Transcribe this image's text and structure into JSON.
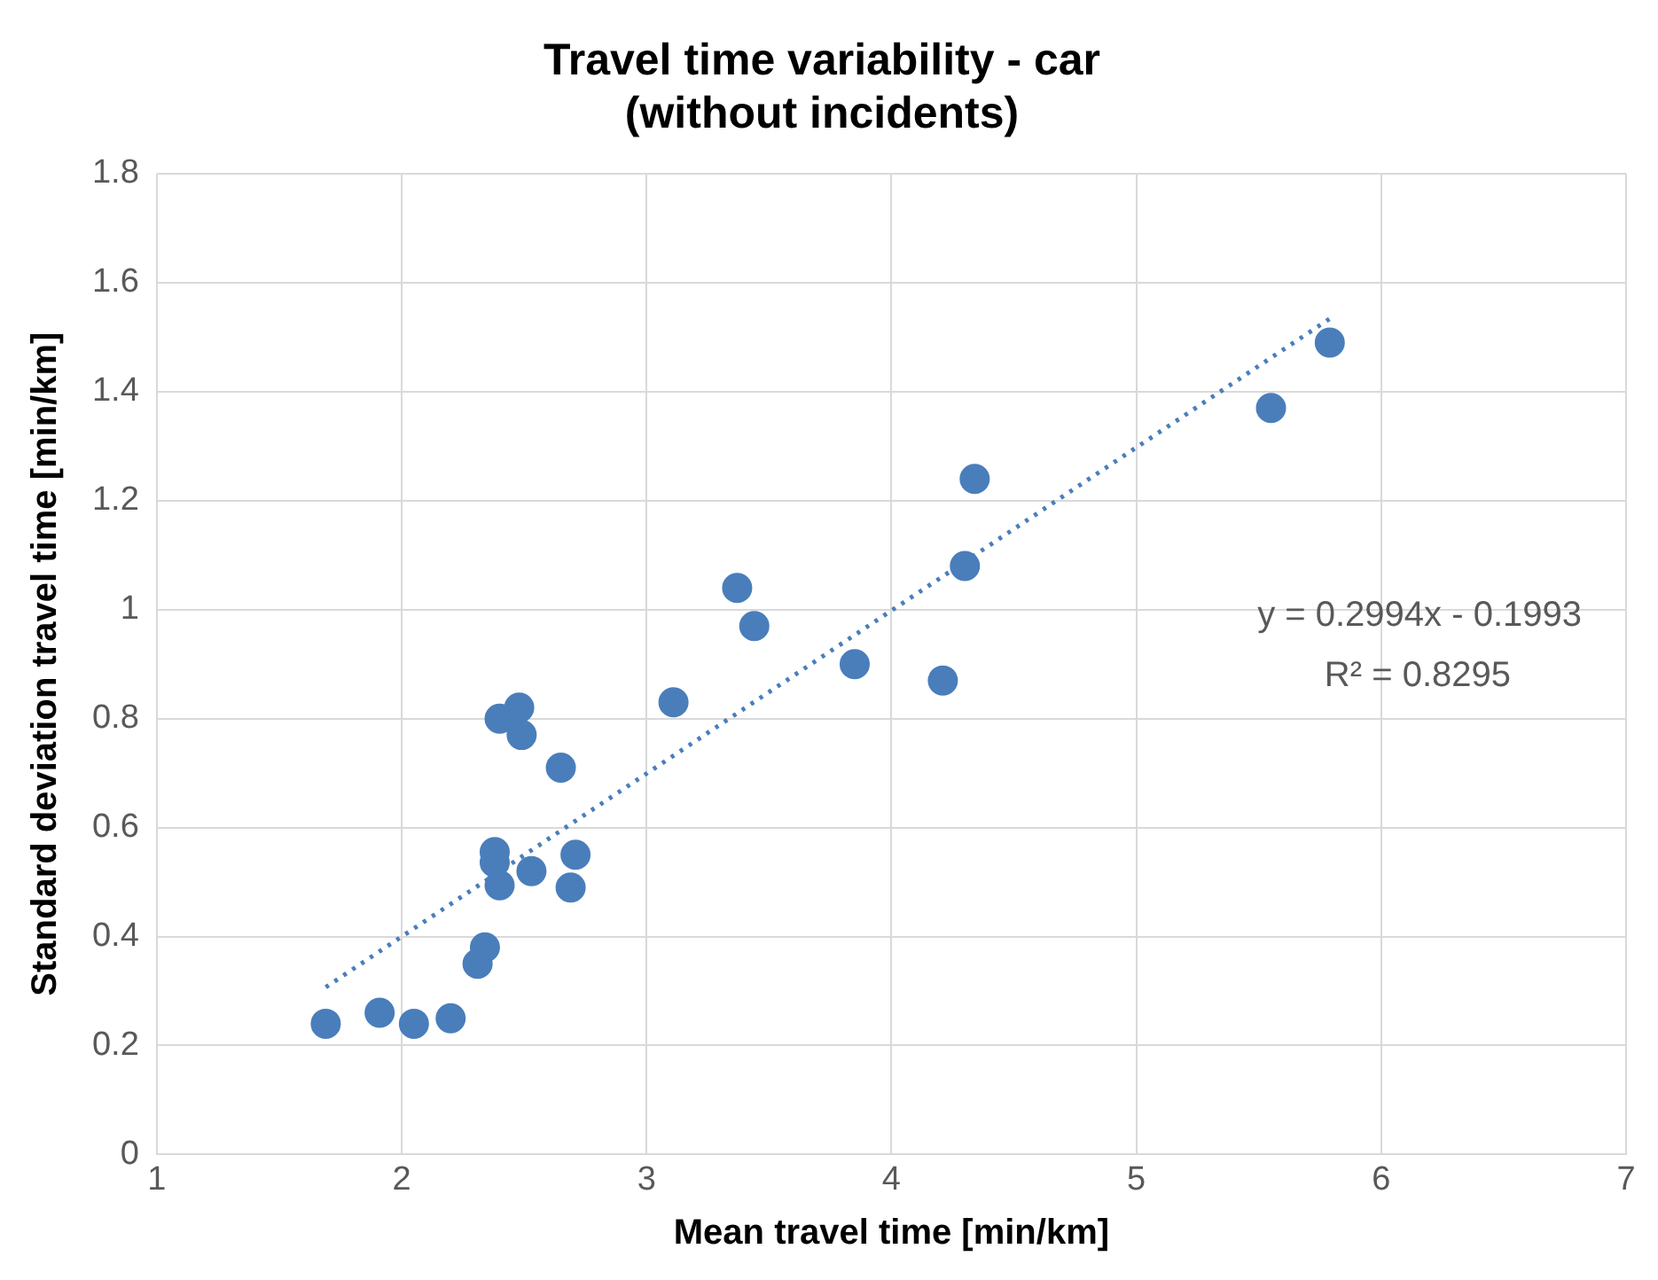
{
  "chart_data": {
    "type": "scatter",
    "title": "Travel time variability - car\n(without incidents)",
    "xlabel": "Mean travel time [min/km]",
    "ylabel": "Standard deviation travel time [min/km]",
    "series": [
      {
        "color": "#4a7ebb",
        "marker": "circle",
        "x": [
          1.69,
          1.91,
          2.05,
          2.2,
          2.31,
          2.34,
          2.38,
          2.38,
          2.4,
          2.4,
          2.48,
          2.49,
          2.65,
          2.53,
          2.71,
          2.69,
          3.11,
          3.37,
          3.44,
          3.85,
          4.21,
          4.3,
          4.34,
          5.55,
          5.79
        ],
        "values": [
          0.24,
          0.26,
          0.24,
          0.25,
          0.35,
          0.38,
          0.555,
          0.536,
          0.494,
          0.8,
          0.82,
          0.77,
          0.71,
          0.52,
          0.55,
          0.49,
          0.83,
          1.04,
          0.97,
          0.9,
          0.87,
          1.08,
          1.24,
          1.37,
          1.49
        ]
      },
      {
        "type": "line",
        "color": "#4a7ebb",
        "line_style": "dotted",
        "marker": "none",
        "x": [
          1.69,
          5.79
        ],
        "values": [
          0.307,
          1.534
        ]
      }
    ],
    "annotations": [
      "y = 0.2994x - 0.1993",
      "R² = 0.8295"
    ],
    "xlim": [
      1,
      7
    ],
    "xticks": [
      1,
      2,
      3,
      4,
      5,
      6,
      7
    ],
    "ylim": [
      0,
      1.8
    ],
    "yticks": [
      0,
      0.2,
      0.4,
      0.6,
      0.8,
      1,
      1.2,
      1.4,
      1.6,
      1.8
    ],
    "grid": true,
    "legend": false
  }
}
